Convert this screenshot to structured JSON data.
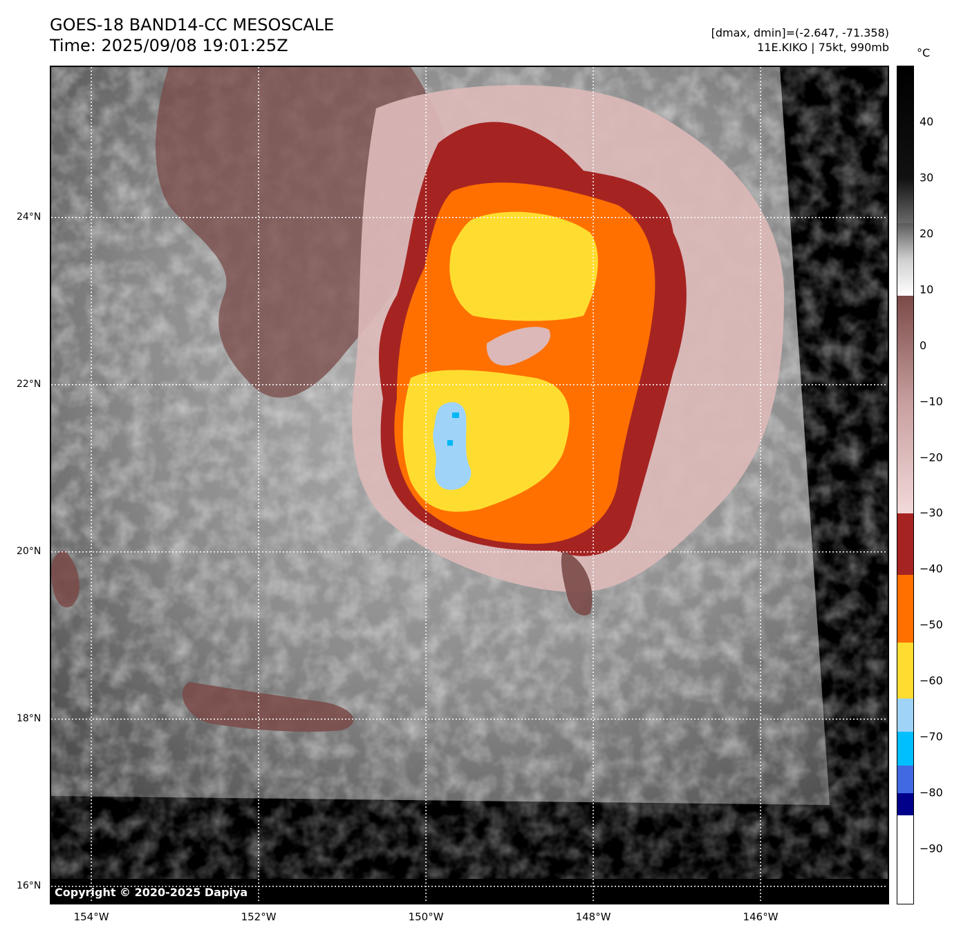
{
  "header": {
    "title_line1": "GOES-18 BAND14-CC MESOSCALE",
    "title_line2": "Time: 2025/09/08 19:01:25Z",
    "range_text": "[dmax, dmin]=(-2.647, -71.358)",
    "storm_text": "11E.KIKO | 75kt, 990mb"
  },
  "map": {
    "copyright": "Copyright © 2020-2025 Dapiya",
    "lon_ticks": [
      {
        "lon": -154,
        "label": "154°W"
      },
      {
        "lon": -152,
        "label": "152°W"
      },
      {
        "lon": -150,
        "label": "150°W"
      },
      {
        "lon": -148,
        "label": "148°W"
      },
      {
        "lon": -146,
        "label": "146°W"
      }
    ],
    "lat_ticks": [
      {
        "lat": 24,
        "label": "24°N"
      },
      {
        "lat": 22,
        "label": "22°N"
      },
      {
        "lat": 20,
        "label": "20°N"
      },
      {
        "lat": 18,
        "label": "18°N"
      },
      {
        "lat": 16,
        "label": "16°N"
      }
    ],
    "lon_range": [
      -154.48,
      -144.48
    ],
    "lat_range": [
      15.8,
      25.8
    ],
    "colors": {
      "nodata": "#000000",
      "warm_gray": "#8a8a8a",
      "cold_brown": "#7a4a48",
      "pink": "#dcb8b8",
      "dark_red": "#a52422",
      "orange": "#ff7000",
      "yellow": "#ffdd30",
      "light_blue": "#9fd3f8",
      "cyan": "#00b7f5"
    }
  },
  "colorbar": {
    "unit": "°C",
    "range": [
      -100,
      50
    ],
    "ticks": [
      "40",
      "30",
      "20",
      "10",
      "0",
      "−10",
      "−20",
      "−30",
      "−40",
      "−50",
      "−60",
      "−70",
      "−80",
      "−90"
    ],
    "tick_values": [
      40,
      30,
      20,
      10,
      0,
      -10,
      -20,
      -30,
      -40,
      -50,
      -60,
      -70,
      -80,
      -90
    ],
    "segments": [
      {
        "from": 50,
        "to": 30,
        "color": "#000000"
      },
      {
        "from": 30,
        "to": 22,
        "color": "#3a3a3a"
      },
      {
        "from": 22,
        "to": 9,
        "color": "#bdbdbd"
      },
      {
        "from": 9,
        "to": -30,
        "color": "#a07070"
      },
      {
        "from": -30,
        "to": -41,
        "color": "#a52422"
      },
      {
        "from": -41,
        "to": -53,
        "color": "#ff7000"
      },
      {
        "from": -53,
        "to": -63,
        "color": "#ffdd30"
      },
      {
        "from": -63,
        "to": -69,
        "color": "#9fd3f8"
      },
      {
        "from": -69,
        "to": -75,
        "color": "#00bfff"
      },
      {
        "from": -75,
        "to": -80,
        "color": "#4169e1"
      },
      {
        "from": -80,
        "to": -84,
        "color": "#00008b"
      },
      {
        "from": -84,
        "to": -100,
        "color": "#ffffff"
      }
    ]
  }
}
